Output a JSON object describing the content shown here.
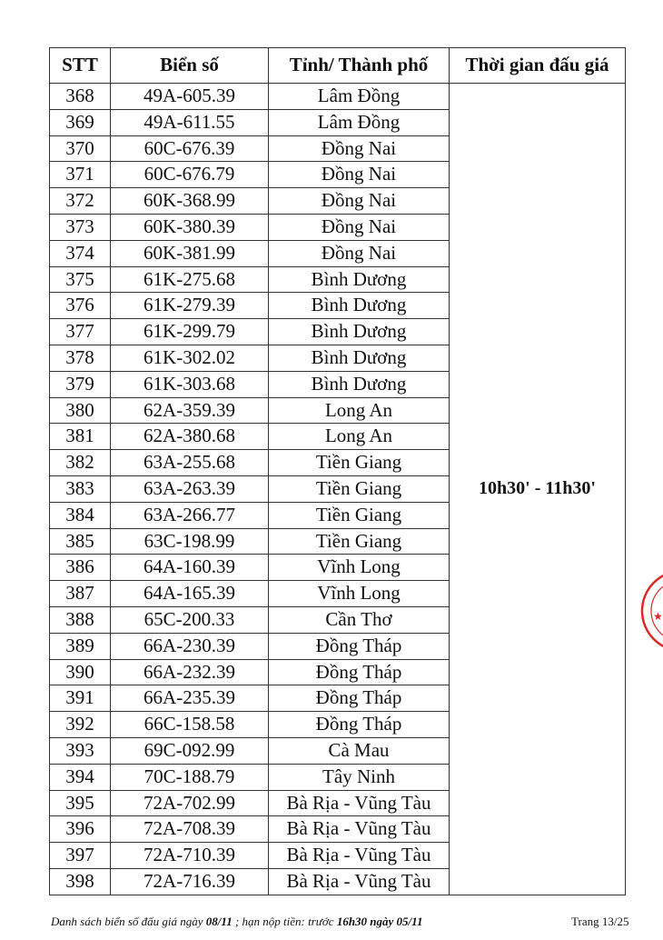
{
  "table": {
    "headers": [
      "STT",
      "Biển số",
      "Tỉnh/ Thành phố",
      "Thời gian đấu giá"
    ],
    "time_slot": "10h30' - 11h30'",
    "rows": [
      [
        "368",
        "49A-605.39",
        "Lâm Đồng"
      ],
      [
        "369",
        "49A-611.55",
        "Lâm Đồng"
      ],
      [
        "370",
        "60C-676.39",
        "Đồng Nai"
      ],
      [
        "371",
        "60C-676.79",
        "Đồng Nai"
      ],
      [
        "372",
        "60K-368.99",
        "Đồng Nai"
      ],
      [
        "373",
        "60K-380.39",
        "Đồng Nai"
      ],
      [
        "374",
        "60K-381.99",
        "Đồng Nai"
      ],
      [
        "375",
        "61K-275.68",
        "Bình Dương"
      ],
      [
        "376",
        "61K-279.39",
        "Bình Dương"
      ],
      [
        "377",
        "61K-299.79",
        "Bình Dương"
      ],
      [
        "378",
        "61K-302.02",
        "Bình Dương"
      ],
      [
        "379",
        "61K-303.68",
        "Bình Dương"
      ],
      [
        "380",
        "62A-359.39",
        "Long An"
      ],
      [
        "381",
        "62A-380.68",
        "Long An"
      ],
      [
        "382",
        "63A-255.68",
        "Tiền Giang"
      ],
      [
        "383",
        "63A-263.39",
        "Tiền Giang"
      ],
      [
        "384",
        "63A-266.77",
        "Tiền Giang"
      ],
      [
        "385",
        "63C-198.99",
        "Tiền Giang"
      ],
      [
        "386",
        "64A-160.39",
        "Vĩnh Long"
      ],
      [
        "387",
        "64A-165.39",
        "Vĩnh Long"
      ],
      [
        "388",
        "65C-200.33",
        "Cần Thơ"
      ],
      [
        "389",
        "66A-230.39",
        "Đồng Tháp"
      ],
      [
        "390",
        "66A-232.39",
        "Đồng Tháp"
      ],
      [
        "391",
        "66A-235.39",
        "Đồng Tháp"
      ],
      [
        "392",
        "66C-158.58",
        "Đồng Tháp"
      ],
      [
        "393",
        "69C-092.99",
        "Cà Mau"
      ],
      [
        "394",
        "70C-188.79",
        "Tây Ninh"
      ],
      [
        "395",
        "72A-702.99",
        "Bà Rịa - Vũng Tàu"
      ],
      [
        "396",
        "72A-708.39",
        "Bà Rịa - Vũng Tàu"
      ],
      [
        "397",
        "72A-710.39",
        "Bà Rịa - Vũng Tàu"
      ],
      [
        "398",
        "72A-716.39",
        "Bà Rịa - Vũng Tàu"
      ]
    ]
  },
  "footer": {
    "text1": "Danh sách biển số đấu giá ngày ",
    "date": "08/11",
    "text2": " ; hạn nộp tiền: trước ",
    "deadline": "16h30 ngày 05/11",
    "page": "Trang 13/25"
  },
  "stamp": {
    "color": "#d92a2a"
  }
}
